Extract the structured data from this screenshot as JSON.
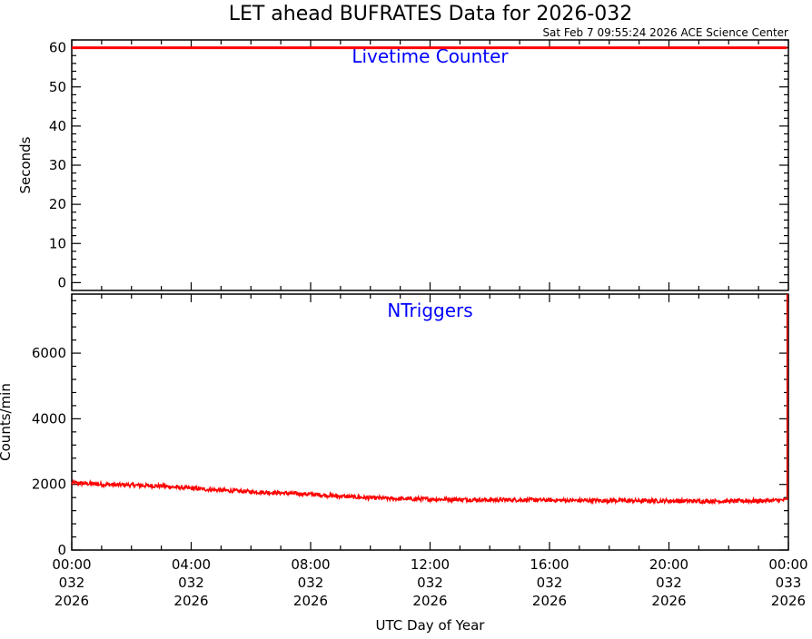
{
  "title": "LET ahead BUFRATES Data for 2026-032",
  "subtitle": "Sat Feb  7 09:55:24 2026 ACE Science Center",
  "colors": {
    "data": "#ff0000",
    "panel_title": "#0000ff",
    "axes": "#000000"
  },
  "chart_data": [
    {
      "type": "line",
      "panel_title": "Livetime Counter",
      "ylabel": "Seconds",
      "xlabel": "",
      "ylim": [
        -2,
        62
      ],
      "yticks": [
        0,
        10,
        20,
        30,
        40,
        50,
        60
      ],
      "xlim": [
        0,
        24
      ],
      "xticks_hours": [
        0,
        4,
        8,
        12,
        16,
        20,
        24
      ],
      "series": [
        {
          "x": [
            0,
            23.95
          ],
          "y": [
            60,
            60
          ]
        }
      ]
    },
    {
      "type": "line",
      "panel_title": "NTriggers",
      "ylabel": "Counts/min",
      "xlabel": "UTC Day of Year",
      "ylim": [
        0,
        7800
      ],
      "yticks": [
        0,
        2000,
        4000,
        6000
      ],
      "xlim": [
        0,
        24
      ],
      "xticks_hours": [
        0,
        4,
        8,
        12,
        16,
        20,
        24
      ],
      "xtick_labels": [
        [
          "00:00",
          "032",
          "2026"
        ],
        [
          "04:00",
          "032",
          "2026"
        ],
        [
          "08:00",
          "032",
          "2026"
        ],
        [
          "12:00",
          "032",
          "2026"
        ],
        [
          "16:00",
          "032",
          "2026"
        ],
        [
          "20:00",
          "032",
          "2026"
        ],
        [
          "00:00",
          "033",
          "2026"
        ]
      ],
      "series": [
        {
          "x": [
            0,
            1,
            2,
            3,
            4,
            5,
            6,
            7,
            8,
            9,
            10,
            11,
            12,
            13,
            14,
            15,
            16,
            17,
            18,
            19,
            20,
            21,
            22,
            23,
            23.9,
            23.96,
            23.96
          ],
          "y": [
            2050,
            2000,
            1980,
            1950,
            1880,
            1820,
            1780,
            1740,
            1700,
            1640,
            1590,
            1560,
            1550,
            1540,
            1530,
            1530,
            1520,
            1510,
            1510,
            1500,
            1500,
            1490,
            1490,
            1500,
            1520,
            1550,
            7800
          ],
          "noise_amplitude": 60
        }
      ]
    }
  ]
}
